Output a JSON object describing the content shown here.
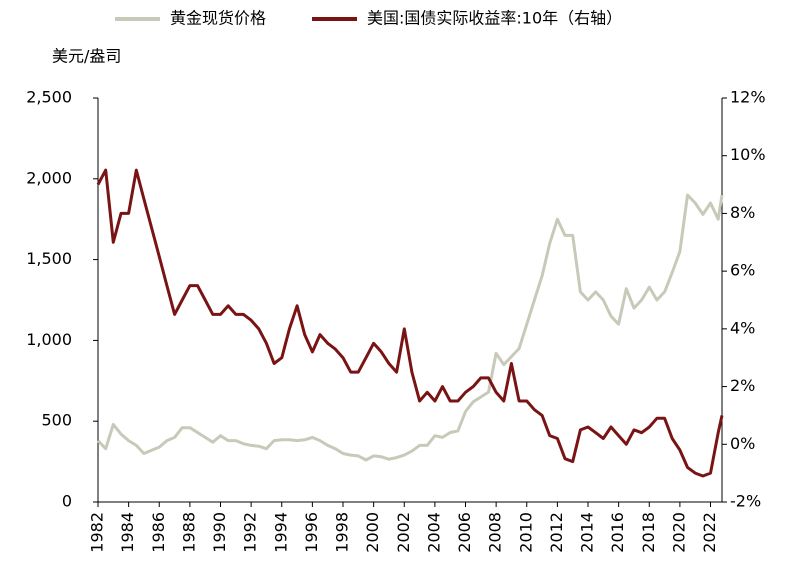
{
  "chart_data": {
    "type": "line",
    "y_label": "美元/盎司",
    "x": [
      1982,
      1982.5,
      1983,
      1983.5,
      1984,
      1984.5,
      1985,
      1985.5,
      1986,
      1986.5,
      1987,
      1987.5,
      1988,
      1988.5,
      1989,
      1989.5,
      1990,
      1990.5,
      1991,
      1991.5,
      1992,
      1992.5,
      1993,
      1993.5,
      1994,
      1994.5,
      1995,
      1995.5,
      1996,
      1996.5,
      1997,
      1997.5,
      1998,
      1998.5,
      1999,
      1999.5,
      2000,
      2000.5,
      2001,
      2001.5,
      2002,
      2002.5,
      2003,
      2003.5,
      2004,
      2004.5,
      2005,
      2005.5,
      2006,
      2006.5,
      2007,
      2007.5,
      2008,
      2008.5,
      2009,
      2009.5,
      2010,
      2010.5,
      2011,
      2011.5,
      2012,
      2012.5,
      2013,
      2013.5,
      2014,
      2014.5,
      2015,
      2015.5,
      2016,
      2016.5,
      2017,
      2017.5,
      2018,
      2018.5,
      2019,
      2019.5,
      2020,
      2020.5,
      2021,
      2021.5,
      2022,
      2022.5,
      2022.75
    ],
    "series": [
      {
        "name": "黄金现货价格",
        "color": "#c9c9b9",
        "axis": "y",
        "values": [
          380,
          330,
          480,
          420,
          380,
          350,
          300,
          320,
          340,
          380,
          400,
          460,
          460,
          430,
          400,
          370,
          410,
          380,
          380,
          360,
          350,
          345,
          330,
          380,
          385,
          385,
          380,
          385,
          400,
          380,
          350,
          330,
          300,
          290,
          285,
          260,
          285,
          280,
          265,
          275,
          290,
          315,
          350,
          350,
          410,
          400,
          430,
          440,
          560,
          620,
          650,
          680,
          920,
          850,
          900,
          950,
          1100,
          1250,
          1400,
          1600,
          1750,
          1650,
          1650,
          1300,
          1250,
          1300,
          1250,
          1150,
          1100,
          1320,
          1200,
          1250,
          1330,
          1250,
          1300,
          1420,
          1550,
          1900,
          1850,
          1780,
          1850,
          1750,
          1900
        ]
      },
      {
        "name": "美国:国债实际收益率:10年（右轴）",
        "color": "#7a1414",
        "axis": "y2",
        "values": [
          9.0,
          9.5,
          7.0,
          8.0,
          8.0,
          9.5,
          8.5,
          7.5,
          6.5,
          5.5,
          4.5,
          5.0,
          5.5,
          5.5,
          5.0,
          4.5,
          4.5,
          4.8,
          4.5,
          4.5,
          4.3,
          4.0,
          3.5,
          2.8,
          3.0,
          4.0,
          4.8,
          3.8,
          3.2,
          3.8,
          3.5,
          3.3,
          3.0,
          2.5,
          2.5,
          3.0,
          3.5,
          3.2,
          2.8,
          2.5,
          4.0,
          2.5,
          1.5,
          1.8,
          1.5,
          2.0,
          1.5,
          1.5,
          1.8,
          2.0,
          2.3,
          2.3,
          1.8,
          1.5,
          2.8,
          1.5,
          1.5,
          1.2,
          1.0,
          0.3,
          0.2,
          -0.5,
          -0.6,
          0.5,
          0.6,
          0.4,
          0.2,
          0.6,
          0.3,
          0.0,
          0.5,
          0.4,
          0.6,
          0.9,
          0.9,
          0.2,
          -0.2,
          -0.8,
          -1.0,
          -1.1,
          -1.0,
          0.4,
          1.0
        ]
      }
    ],
    "xlim": [
      1982,
      2022.75
    ],
    "xticks": [
      1982,
      1984,
      1986,
      1988,
      1990,
      1992,
      1994,
      1996,
      1998,
      2000,
      2002,
      2004,
      2006,
      2008,
      2010,
      2012,
      2014,
      2016,
      2018,
      2020,
      2022
    ],
    "ylim": [
      0,
      2500
    ],
    "yticks": [
      0,
      500,
      {
        "value": 1000,
        "label": "1,000"
      },
      {
        "value": 1500,
        "label": "1,500"
      },
      {
        "value": 2000,
        "label": "2,000"
      },
      {
        "value": 2500,
        "label": "2,500"
      }
    ],
    "y2lim": [
      -2,
      12
    ],
    "y2ticks": [
      {
        "value": -2,
        "label": "-2%"
      },
      {
        "value": 0,
        "label": "0%"
      },
      {
        "value": 2,
        "label": "2%"
      },
      {
        "value": 4,
        "label": "4%"
      },
      {
        "value": 6,
        "label": "6%"
      },
      {
        "value": 8,
        "label": "8%"
      },
      {
        "value": 10,
        "label": "10%"
      },
      {
        "value": 12,
        "label": "12%"
      }
    ],
    "grid": false,
    "legend": "top"
  }
}
